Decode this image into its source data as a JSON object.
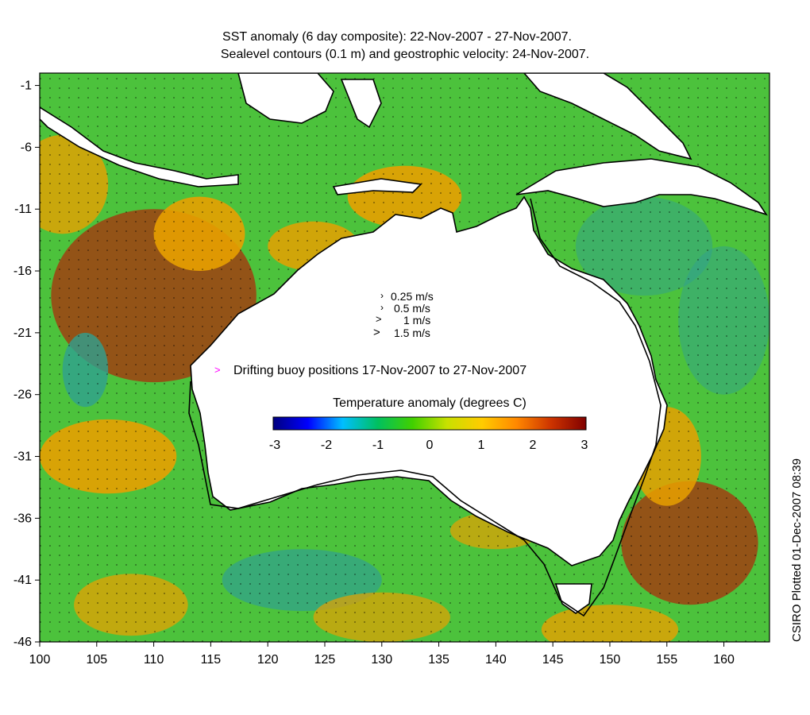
{
  "title": {
    "line1": "SST anomaly (6 day composite): 22-Nov-2007 - 27-Nov-2007.",
    "line2": "Sealevel contours (0.1 m) and geostrophic velocity: 24-Nov-2007."
  },
  "map": {
    "lon_range": [
      100,
      164
    ],
    "lat_range": [
      -46,
      0
    ],
    "x_ticks": [
      "100",
      "105",
      "110",
      "115",
      "120",
      "125",
      "130",
      "135",
      "140",
      "145",
      "150",
      "155",
      "160"
    ],
    "y_ticks": [
      "-1",
      "-6",
      "-11",
      "-16",
      "-21",
      "-26",
      "-31",
      "-36",
      "-41",
      "-46"
    ],
    "velocity_legend": [
      "0.25 m/s",
      "0.5 m/s",
      "1 m/s",
      "1.5 m/s"
    ],
    "buoy_legend": "Drifting buoy positions 17-Nov-2007 to 27-Nov-2007",
    "colorbar": {
      "title": "Temperature anomaly (degrees C)",
      "ticks": [
        "-3",
        "-2",
        "-1",
        "0",
        "1",
        "2",
        "3"
      ],
      "range": [
        -3,
        3
      ],
      "colors": [
        "#00007f",
        "#0000ff",
        "#00bfff",
        "#00c060",
        "#40d000",
        "#c8e000",
        "#ffcc00",
        "#ff8800",
        "#cc3300",
        "#800000"
      ]
    },
    "palette": {
      "ocean_green": "#3fbf3f",
      "ocean_warm": "#e8a000",
      "ocean_hot": "#a04010",
      "ocean_cool": "#30a090",
      "buoy": "#ff00ff",
      "land": "#ffffff"
    }
  },
  "credit": "CSIRO Plotted 01-Dec-2007 08:39"
}
